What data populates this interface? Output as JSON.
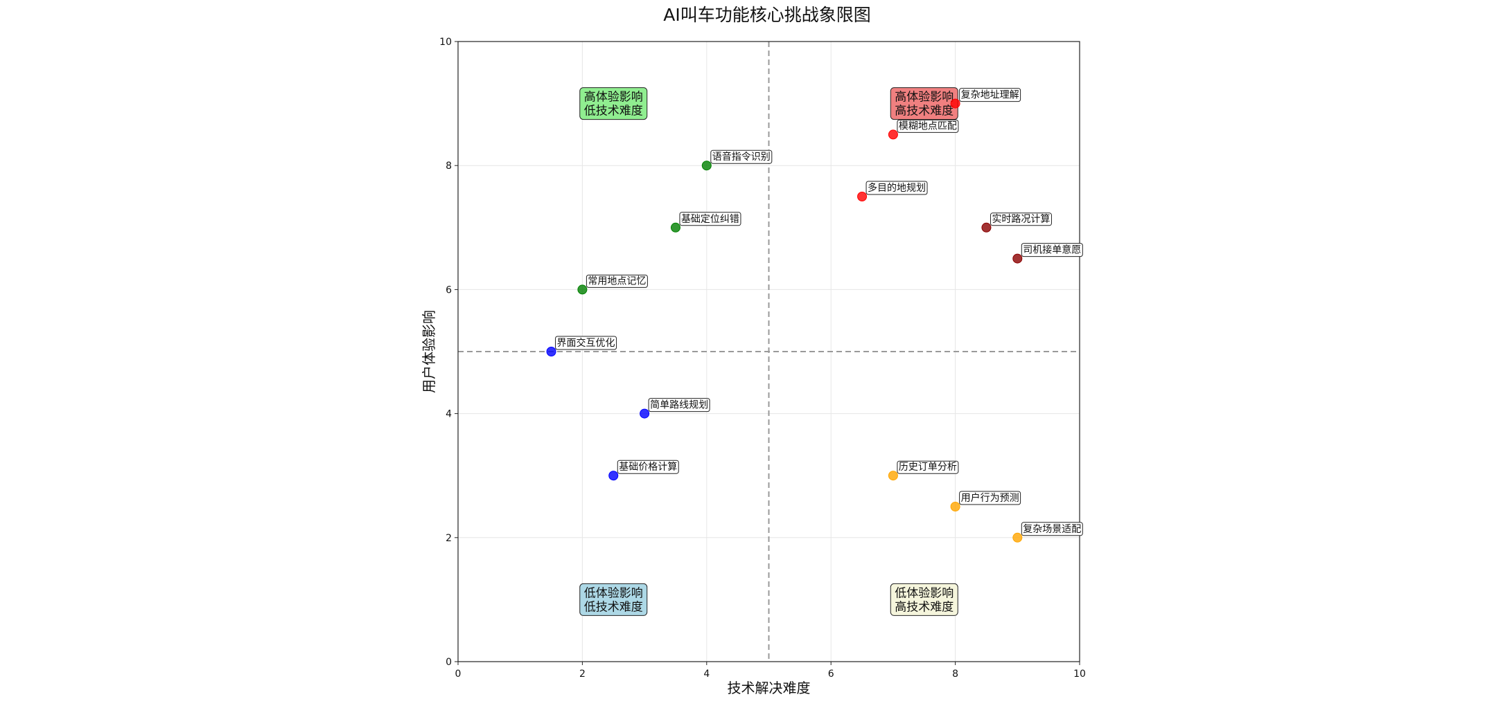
{
  "chart_data": {
    "type": "scatter",
    "title": "AI叫车功能核心挑战象限图",
    "xlabel": "技术解决难度",
    "ylabel": "用户体验影响",
    "xlim": [
      0,
      10
    ],
    "ylim": [
      0,
      10
    ],
    "xticks": [
      "0",
      "2",
      "4",
      "6",
      "8",
      "10"
    ],
    "yticks": [
      "0",
      "2",
      "4",
      "6",
      "8",
      "10"
    ],
    "grid": true,
    "divider_x": 5,
    "divider_y": 5,
    "quadrants": [
      {
        "lines": [
          "高体验影响",
          "低技术难度"
        ],
        "x": 2.5,
        "y": 9,
        "color": "#90ee90"
      },
      {
        "lines": [
          "高体验影响",
          "高技术难度"
        ],
        "x": 7.5,
        "y": 9,
        "color": "#f08080"
      },
      {
        "lines": [
          "低体验影响",
          "低技术难度"
        ],
        "x": 2.5,
        "y": 1,
        "color": "#add8e6"
      },
      {
        "lines": [
          "低体验影响",
          "高技术难度"
        ],
        "x": 7.5,
        "y": 1,
        "color": "#f5f5dc"
      }
    ],
    "points": [
      {
        "label": "复杂地址理解",
        "x": 8,
        "y": 9,
        "color": "#ff0000"
      },
      {
        "label": "模糊地点匹配",
        "x": 7,
        "y": 8.5,
        "color": "#ff0000"
      },
      {
        "label": "多目的地规划",
        "x": 6.5,
        "y": 7.5,
        "color": "#ff0000"
      },
      {
        "label": "实时路况计算",
        "x": 8.5,
        "y": 7,
        "color": "#8b0000"
      },
      {
        "label": "司机接单意愿",
        "x": 9,
        "y": 6.5,
        "color": "#8b0000"
      },
      {
        "label": "语音指令识别",
        "x": 4,
        "y": 8,
        "color": "#008000"
      },
      {
        "label": "基础定位纠错",
        "x": 3.5,
        "y": 7,
        "color": "#008000"
      },
      {
        "label": "常用地点记忆",
        "x": 2,
        "y": 6,
        "color": "#008000"
      },
      {
        "label": "界面交互优化",
        "x": 1.5,
        "y": 5,
        "color": "#0000ff"
      },
      {
        "label": "简单路线规划",
        "x": 3,
        "y": 4,
        "color": "#0000ff"
      },
      {
        "label": "基础价格计算",
        "x": 2.5,
        "y": 3,
        "color": "#0000ff"
      },
      {
        "label": "历史订单分析",
        "x": 7,
        "y": 3,
        "color": "#ffa500"
      },
      {
        "label": "用户行为预测",
        "x": 8,
        "y": 2.5,
        "color": "#ffa500"
      },
      {
        "label": "复杂场景适配",
        "x": 9,
        "y": 2,
        "color": "#ffa500"
      }
    ]
  }
}
